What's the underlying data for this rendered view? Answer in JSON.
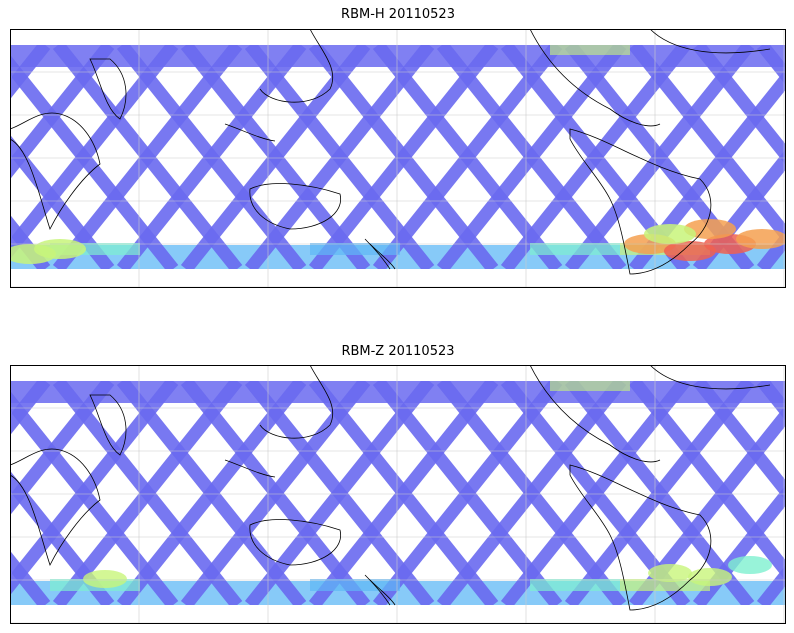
{
  "panels": [
    {
      "title": "RBM-H 20110523",
      "hotspots": "south-america-high"
    },
    {
      "title": "RBM-Z 20110523",
      "hotspots": "moderate"
    }
  ],
  "colors": {
    "low": "#6a6af0",
    "mid_low": "#5fb8f5",
    "mid": "#7ef0d0",
    "mid_high": "#c8f57a",
    "high": "#f5a050",
    "peak": "#f06050",
    "land_outline": "#000000",
    "grid": "#cccccc"
  },
  "map": {
    "projection": "cylindrical",
    "graticule": true,
    "swath_pattern": "satellite-orbit-tracks"
  }
}
